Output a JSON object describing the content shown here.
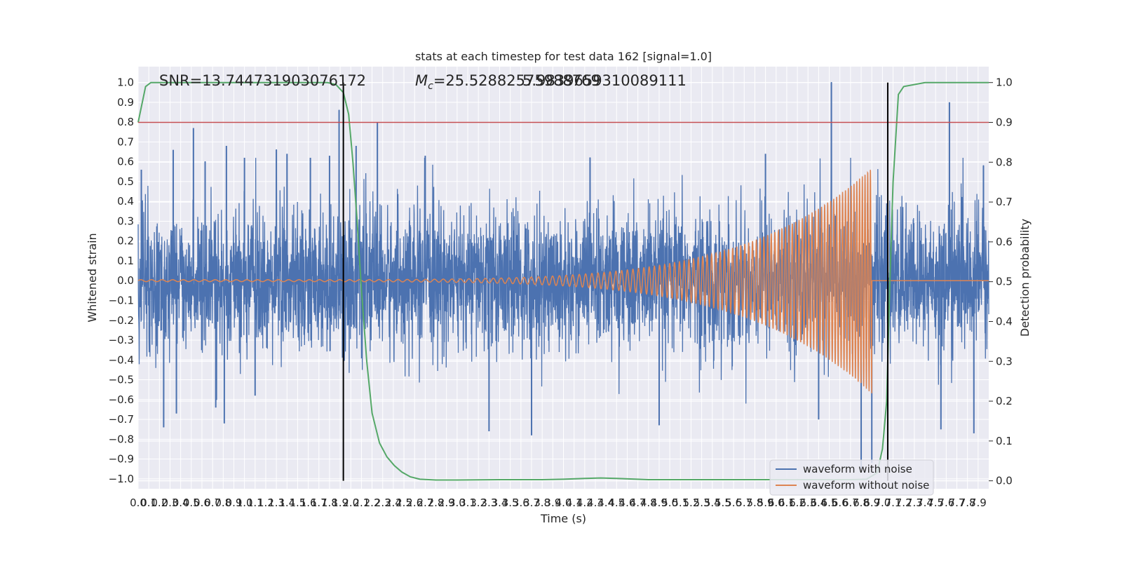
{
  "chart_data": {
    "type": "line",
    "title": "stats at each timestep for test data 162 [signal=1.0]",
    "xlabel": "Time (s)",
    "ylabel": "Whitened strain",
    "y2label": "Detection probability",
    "xlim": [
      0.0,
      8.0
    ],
    "ylim": [
      -1.05,
      1.08
    ],
    "y2lim": [
      -0.02,
      1.04
    ],
    "x_ticks": [
      0.0,
      0.1,
      0.2,
      0.3,
      0.4,
      0.5,
      0.6,
      0.7,
      0.8,
      0.9,
      1.0,
      1.1,
      1.2,
      1.3,
      1.4,
      1.5,
      1.6,
      1.7,
      1.8,
      1.9,
      2.0,
      2.1,
      2.2,
      2.3,
      2.4,
      2.5,
      2.6,
      2.7,
      2.8,
      2.9,
      3.0,
      3.1,
      3.2,
      3.3,
      3.4,
      3.5,
      3.6,
      3.7,
      3.8,
      3.9,
      4.0,
      4.1,
      4.2,
      4.3,
      4.4,
      4.5,
      4.6,
      4.7,
      4.8,
      4.9,
      5.0,
      5.1,
      5.2,
      5.3,
      5.4,
      5.5,
      5.6,
      5.7,
      5.8,
      5.9,
      6.0,
      6.1,
      6.2,
      6.3,
      6.4,
      6.5,
      6.6,
      6.7,
      6.8,
      6.9,
      7.0,
      7.1,
      7.2,
      7.3,
      7.4,
      7.5,
      7.6,
      7.7,
      7.8,
      7.9
    ],
    "y_ticks": [
      -1.0,
      -0.9,
      -0.8,
      -0.7,
      -0.6,
      -0.5,
      -0.4,
      -0.3,
      -0.2,
      -0.1,
      0.0,
      0.1,
      0.2,
      0.3,
      0.4,
      0.5,
      0.6,
      0.7,
      0.8,
      0.9,
      1.0
    ],
    "y2_ticks": [
      0.0,
      0.1,
      0.2,
      0.3,
      0.4,
      0.5,
      0.6,
      0.7,
      0.8,
      0.9,
      1.0
    ],
    "grid": true,
    "legend_position": "lower-right",
    "annotations": {
      "snr": "SNR=13.744731903076172",
      "mc": "=25.52882575988769",
      "mc_symbol": "M",
      "mc_subscript": "c",
      "overlap": "5.9839659310089111"
    },
    "threshold_line": {
      "y2": 0.9,
      "color": "#c44e52"
    },
    "vertical_markers": [
      1.93,
      7.05
    ],
    "colors": {
      "noisy": "#4c72b0",
      "clean": "#dd8452",
      "probability": "#55a868",
      "threshold": "#c44e52",
      "marker": "#000000",
      "axes_bg": "#eaeaf2",
      "grid": "#ffffff"
    },
    "series": [
      {
        "name": "waveform with noise",
        "axis": "left",
        "description_values": {
          "typical_amplitude_range": [
            -0.4,
            0.4
          ],
          "peak_max": 1.0,
          "peak_min": -0.95
        },
        "spikes": [
          {
            "x": 0.03,
            "y": 0.56
          },
          {
            "x": 0.24,
            "y": -0.74
          },
          {
            "x": 0.33,
            "y": 0.66
          },
          {
            "x": 0.36,
            "y": -0.67
          },
          {
            "x": 0.52,
            "y": 0.77
          },
          {
            "x": 0.63,
            "y": 0.6
          },
          {
            "x": 0.73,
            "y": -0.64
          },
          {
            "x": 0.83,
            "y": 0.68
          },
          {
            "x": 0.81,
            "y": -0.72
          },
          {
            "x": 1.0,
            "y": 0.62
          },
          {
            "x": 1.1,
            "y": -0.58
          },
          {
            "x": 1.3,
            "y": 0.66
          },
          {
            "x": 1.4,
            "y": 0.64
          },
          {
            "x": 1.62,
            "y": 0.62
          },
          {
            "x": 1.8,
            "y": 0.63
          },
          {
            "x": 1.89,
            "y": 0.86
          },
          {
            "x": 2.05,
            "y": 0.68
          },
          {
            "x": 2.25,
            "y": 0.8
          },
          {
            "x": 2.7,
            "y": 0.63
          },
          {
            "x": 3.3,
            "y": -0.76
          },
          {
            "x": 3.7,
            "y": -0.78
          },
          {
            "x": 4.25,
            "y": 0.62
          },
          {
            "x": 4.9,
            "y": -0.73
          },
          {
            "x": 5.9,
            "y": 0.64
          },
          {
            "x": 6.4,
            "y": -0.7
          },
          {
            "x": 6.52,
            "y": 1.0
          },
          {
            "x": 6.8,
            "y": -0.95
          },
          {
            "x": 6.9,
            "y": -0.92
          },
          {
            "x": 7.63,
            "y": 0.9
          },
          {
            "x": 7.55,
            "y": -0.75
          },
          {
            "x": 7.86,
            "y": -0.77
          },
          {
            "x": 7.95,
            "y": 0.58
          }
        ]
      },
      {
        "name": "waveform without noise",
        "axis": "left",
        "chirp": {
          "start": 0.0,
          "end": 6.9,
          "amp_start": 0.005,
          "amp_end": 0.57,
          "freq_start_hz": 10,
          "freq_end_hz": 40
        }
      },
      {
        "name": "",
        "axis": "right",
        "x": [
          0.0,
          0.07,
          0.12,
          0.2,
          0.4,
          0.8,
          1.2,
          1.6,
          1.78,
          1.86,
          1.93,
          1.98,
          2.02,
          2.06,
          2.1,
          2.15,
          2.2,
          2.27,
          2.34,
          2.41,
          2.48,
          2.56,
          2.65,
          2.8,
          3.0,
          3.4,
          3.8,
          4.0,
          4.2,
          4.35,
          4.5,
          4.8,
          5.2,
          5.6,
          6.0,
          6.4,
          6.7,
          6.85,
          6.95,
          7.0,
          7.04,
          7.07,
          7.1,
          7.15,
          7.2,
          7.4,
          7.6,
          8.0
        ],
        "y": [
          0.9,
          0.99,
          1.0,
          1.0,
          1.0,
          1.0,
          1.0,
          1.0,
          1.0,
          0.995,
          0.975,
          0.92,
          0.8,
          0.65,
          0.48,
          0.3,
          0.17,
          0.095,
          0.06,
          0.038,
          0.022,
          0.01,
          0.004,
          0.002,
          0.002,
          0.003,
          0.003,
          0.004,
          0.006,
          0.007,
          0.006,
          0.003,
          0.003,
          0.003,
          0.003,
          0.003,
          0.003,
          0.004,
          0.02,
          0.08,
          0.2,
          0.5,
          0.75,
          0.97,
          0.99,
          1.0,
          1.0,
          1.0
        ]
      }
    ]
  }
}
